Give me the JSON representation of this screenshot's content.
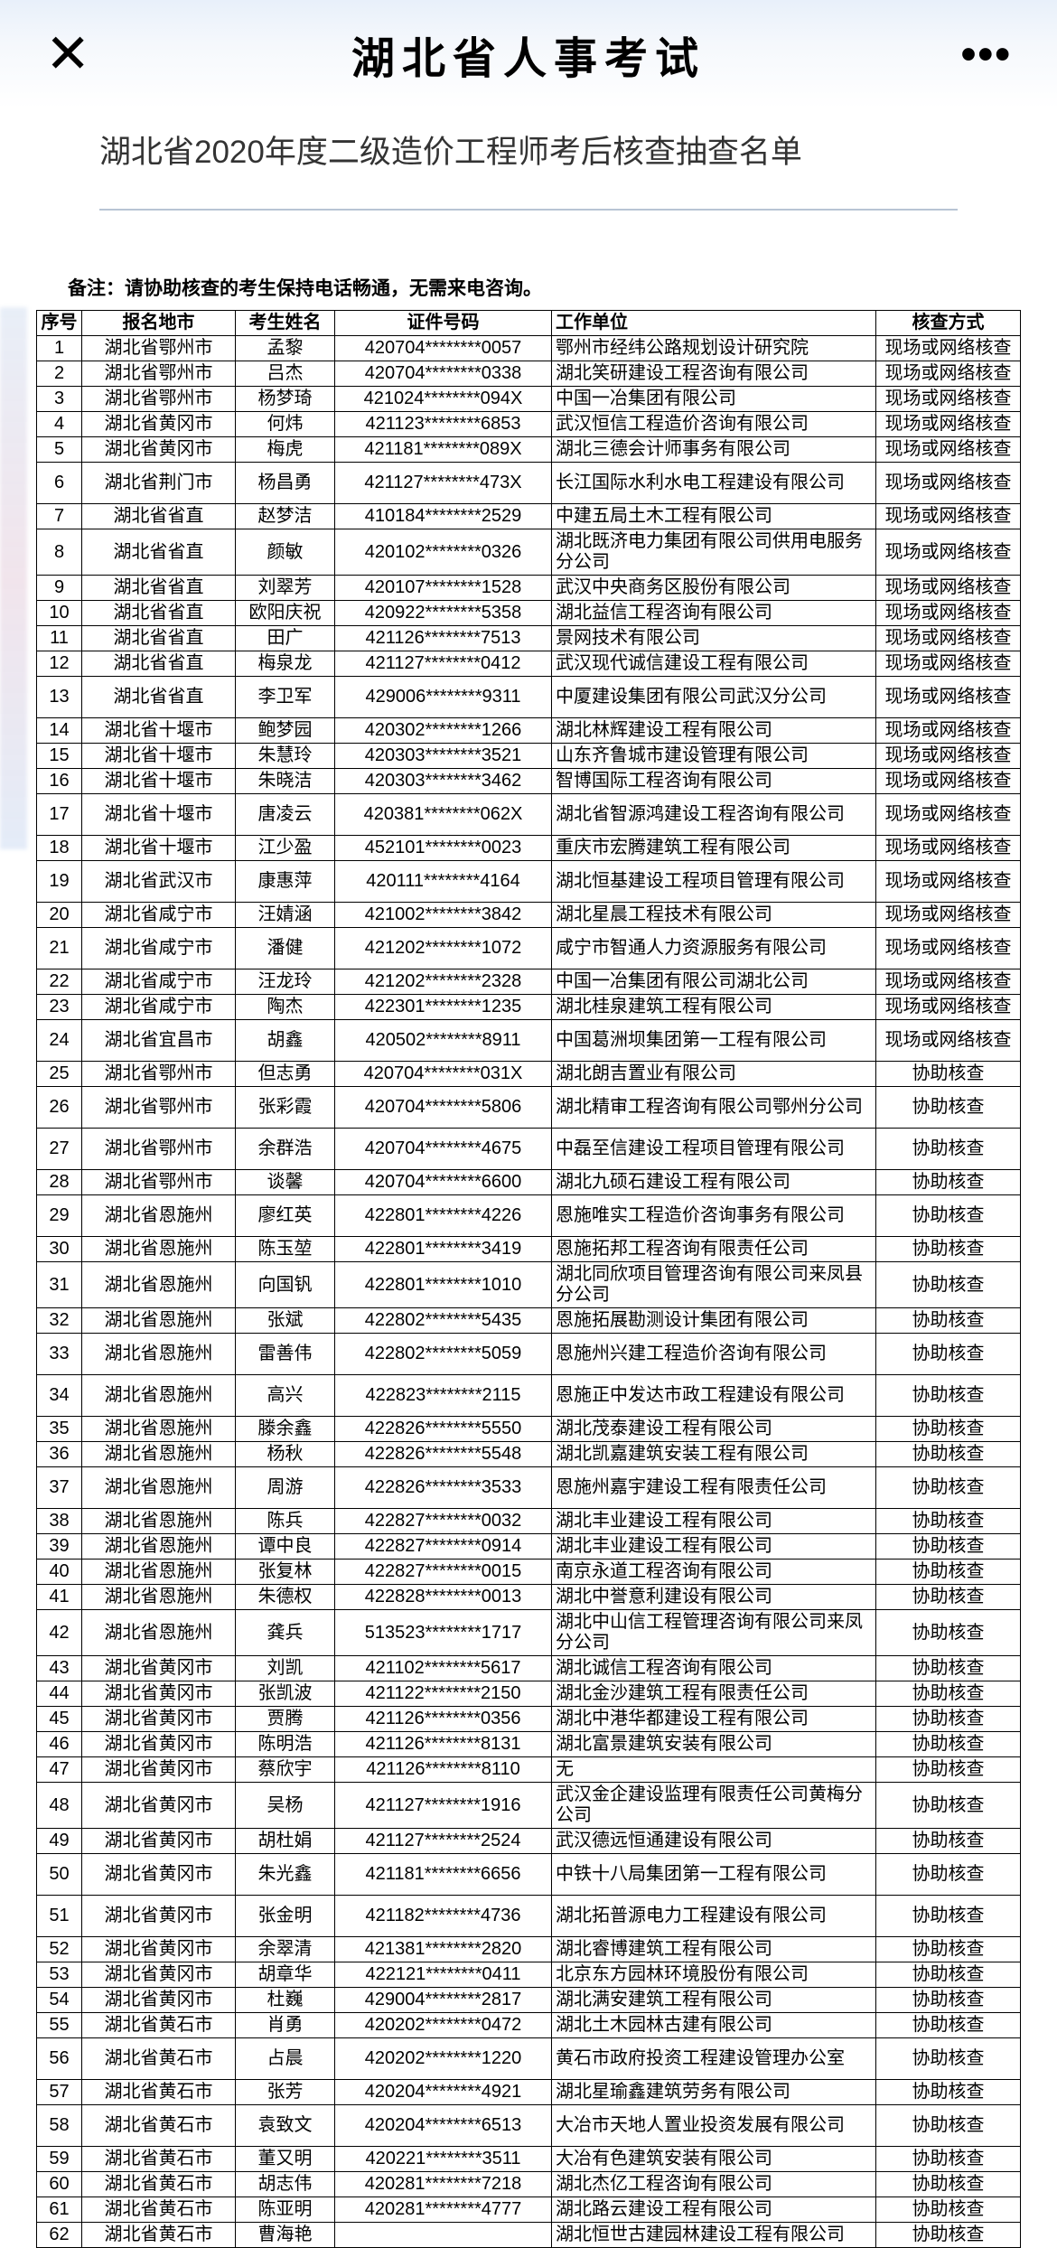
{
  "header": {
    "title": "湖北省人事考试"
  },
  "doc": {
    "title": "湖北省2020年度二级造价工程师考后核查抽查名单",
    "note": "备注：请协助核查的考生保持电话畅通，无需来电咨询。"
  },
  "table": {
    "columns": [
      "序号",
      "报名地市",
      "考生姓名",
      "证件号码",
      "工作单位",
      "核查方式"
    ],
    "rows": [
      [
        "1",
        "湖北省鄂州市",
        "孟黎",
        "420704********0057",
        "鄂州市经纬公路规划设计研究院",
        "现场或网络核查"
      ],
      [
        "2",
        "湖北省鄂州市",
        "吕杰",
        "420704********0338",
        "湖北笑研建设工程咨询有限公司",
        "现场或网络核查"
      ],
      [
        "3",
        "湖北省鄂州市",
        "杨梦琦",
        "421024********094X",
        "中国一冶集团有限公司",
        "现场或网络核查"
      ],
      [
        "4",
        "湖北省黄冈市",
        "何炜",
        "421123********6853",
        "武汉恒信工程造价咨询有限公司",
        "现场或网络核查"
      ],
      [
        "5",
        "湖北省黄冈市",
        "梅虎",
        "421181********089X",
        "湖北三德会计师事务有限公司",
        "现场或网络核查"
      ],
      [
        "6",
        "湖北省荆门市",
        "杨昌勇",
        "421127********473X",
        "长江国际水利水电工程建设有限公司",
        "现场或网络核查"
      ],
      [
        "7",
        "湖北省省直",
        "赵梦洁",
        "410184********2529",
        "中建五局土木工程有限公司",
        "现场或网络核查"
      ],
      [
        "8",
        "湖北省省直",
        "颜敏",
        "420102********0326",
        "湖北既济电力集团有限公司供用电服务分公司",
        "现场或网络核查"
      ],
      [
        "9",
        "湖北省省直",
        "刘翠芳",
        "420107********1528",
        "武汉中央商务区股份有限公司",
        "现场或网络核查"
      ],
      [
        "10",
        "湖北省省直",
        "欧阳庆祝",
        "420922********5358",
        "湖北益信工程咨询有限公司",
        "现场或网络核查"
      ],
      [
        "11",
        "湖北省省直",
        "田广",
        "421126********7513",
        "景网技术有限公司",
        "现场或网络核查"
      ],
      [
        "12",
        "湖北省省直",
        "梅泉龙",
        "421127********0412",
        "武汉现代诚信建设工程有限公司",
        "现场或网络核查"
      ],
      [
        "13",
        "湖北省省直",
        "李卫军",
        "429006********9311",
        "中厦建设集团有限公司武汉分公司",
        "现场或网络核查"
      ],
      [
        "14",
        "湖北省十堰市",
        "鲍梦园",
        "420302********1266",
        "湖北林辉建设工程有限公司",
        "现场或网络核查"
      ],
      [
        "15",
        "湖北省十堰市",
        "朱慧玲",
        "420303********3521",
        "山东齐鲁城市建设管理有限公司",
        "现场或网络核查"
      ],
      [
        "16",
        "湖北省十堰市",
        "朱晓洁",
        "420303********3462",
        "智博国际工程咨询有限公司",
        "现场或网络核查"
      ],
      [
        "17",
        "湖北省十堰市",
        "唐凌云",
        "420381********062X",
        "湖北省智源鸿建设工程咨询有限公司",
        "现场或网络核查"
      ],
      [
        "18",
        "湖北省十堰市",
        "江少盈",
        "452101********0023",
        "重庆市宏腾建筑工程有限公司",
        "现场或网络核查"
      ],
      [
        "19",
        "湖北省武汉市",
        "康惠萍",
        "420111********4164",
        "湖北恒基建设工程项目管理有限公司",
        "现场或网络核查"
      ],
      [
        "20",
        "湖北省咸宁市",
        "汪婧涵",
        "421002********3842",
        "湖北星晨工程技术有限公司",
        "现场或网络核查"
      ],
      [
        "21",
        "湖北省咸宁市",
        "潘健",
        "421202********1072",
        "咸宁市智通人力资源服务有限公司",
        "现场或网络核查"
      ],
      [
        "22",
        "湖北省咸宁市",
        "汪龙玲",
        "421202********2328",
        "中国一冶集团有限公司湖北公司",
        "现场或网络核查"
      ],
      [
        "23",
        "湖北省咸宁市",
        "陶杰",
        "422301********1235",
        "湖北桂泉建筑工程有限公司",
        "现场或网络核查"
      ],
      [
        "24",
        "湖北省宜昌市",
        "胡鑫",
        "420502********8911",
        "中国葛洲坝集团第一工程有限公司",
        "现场或网络核查"
      ],
      [
        "25",
        "湖北省鄂州市",
        "但志勇",
        "420704********031X",
        "湖北朗吉置业有限公司",
        "协助核查"
      ],
      [
        "26",
        "湖北省鄂州市",
        "张彩霞",
        "420704********5806",
        "湖北精审工程咨询有限公司鄂州分公司",
        "协助核查"
      ],
      [
        "27",
        "湖北省鄂州市",
        "余群浩",
        "420704********4675",
        "中磊至信建设工程项目管理有限公司",
        "协助核查"
      ],
      [
        "28",
        "湖北省鄂州市",
        "谈馨",
        "420704********6600",
        "湖北九硕石建设工程有限公司",
        "协助核查"
      ],
      [
        "29",
        "湖北省恩施州",
        "廖红英",
        "422801********4226",
        "恩施唯实工程造价咨询事务有限公司",
        "协助核查"
      ],
      [
        "30",
        "湖北省恩施州",
        "陈玉堃",
        "422801********3419",
        "恩施拓邦工程咨询有限责任公司",
        "协助核查"
      ],
      [
        "31",
        "湖北省恩施州",
        "向国钒",
        "422801********1010",
        "湖北同欣项目管理咨询有限公司来凤县分公司",
        "协助核查"
      ],
      [
        "32",
        "湖北省恩施州",
        "张斌",
        "422802********5435",
        "恩施拓展勘测设计集团有限公司",
        "协助核查"
      ],
      [
        "33",
        "湖北省恩施州",
        "雷善伟",
        "422802********5059",
        "恩施州兴建工程造价咨询有限公司",
        "协助核查"
      ],
      [
        "34",
        "湖北省恩施州",
        "高兴",
        "422823********2115",
        "恩施正中发达市政工程建设有限公司",
        "协助核查"
      ],
      [
        "35",
        "湖北省恩施州",
        "滕余鑫",
        "422826********5550",
        "湖北茂泰建设工程有限公司",
        "协助核查"
      ],
      [
        "36",
        "湖北省恩施州",
        "杨秋",
        "422826********5548",
        "湖北凯嘉建筑安装工程有限公司",
        "协助核查"
      ],
      [
        "37",
        "湖北省恩施州",
        "周游",
        "422826********3533",
        "恩施州嘉宇建设工程有限责任公司",
        "协助核查"
      ],
      [
        "38",
        "湖北省恩施州",
        "陈兵",
        "422827********0032",
        "湖北丰业建设工程有限公司",
        "协助核查"
      ],
      [
        "39",
        "湖北省恩施州",
        "谭中良",
        "422827********0914",
        "湖北丰业建设工程有限公司",
        "协助核查"
      ],
      [
        "40",
        "湖北省恩施州",
        "张复林",
        "422827********0015",
        "南京永道工程咨询有限公司",
        "协助核查"
      ],
      [
        "41",
        "湖北省恩施州",
        "朱德权",
        "422828********0013",
        "湖北中誉意利建设有限公司",
        "协助核查"
      ],
      [
        "42",
        "湖北省恩施州",
        "龚兵",
        "513523********1717",
        "湖北中山信工程管理咨询有限公司来凤分公司",
        "协助核查"
      ],
      [
        "43",
        "湖北省黄冈市",
        "刘凯",
        "421102********5617",
        "湖北诚信工程咨询有限公司",
        "协助核查"
      ],
      [
        "44",
        "湖北省黄冈市",
        "张凯波",
        "421122********2150",
        "湖北金沙建筑工程有限责任公司",
        "协助核查"
      ],
      [
        "45",
        "湖北省黄冈市",
        "贾腾",
        "421126********0356",
        "湖北中港华都建设工程有限公司",
        "协助核查"
      ],
      [
        "46",
        "湖北省黄冈市",
        "陈明浩",
        "421126********8131",
        "湖北富景建筑安装有限公司",
        "协助核查"
      ],
      [
        "47",
        "湖北省黄冈市",
        "蔡欣宇",
        "421126********8110",
        "无",
        "协助核查"
      ],
      [
        "48",
        "湖北省黄冈市",
        "吴杨",
        "421127********1916",
        "武汉金企建设监理有限责任公司黄梅分公司",
        "协助核查"
      ],
      [
        "49",
        "湖北省黄冈市",
        "胡杜娟",
        "421127********2524",
        "武汉德远恒通建设有限公司",
        "协助核查"
      ],
      [
        "50",
        "湖北省黄冈市",
        "朱光鑫",
        "421181********6656",
        "中铁十八局集团第一工程有限公司",
        "协助核查"
      ],
      [
        "51",
        "湖北省黄冈市",
        "张金明",
        "421182********4736",
        "湖北拓普源电力工程建设有限公司",
        "协助核查"
      ],
      [
        "52",
        "湖北省黄冈市",
        "余翠清",
        "421381********2820",
        "湖北睿博建筑工程有限公司",
        "协助核查"
      ],
      [
        "53",
        "湖北省黄冈市",
        "胡章华",
        "422121********0411",
        "北京东方园林环境股份有限公司",
        "协助核查"
      ],
      [
        "54",
        "湖北省黄冈市",
        "杜巍",
        "429004********2817",
        "湖北满安建筑工程有限公司",
        "协助核查"
      ],
      [
        "55",
        "湖北省黄石市",
        "肖勇",
        "420202********0472",
        "湖北土木园林古建有限公司",
        "协助核查"
      ],
      [
        "56",
        "湖北省黄石市",
        "占晨",
        "420202********1220",
        "黄石市政府投资工程建设管理办公室",
        "协助核查"
      ],
      [
        "57",
        "湖北省黄石市",
        "张芳",
        "420204********4921",
        "湖北星瑜鑫建筑劳务有限公司",
        "协助核查"
      ],
      [
        "58",
        "湖北省黄石市",
        "袁致文",
        "420204********6513",
        "大冶市天地人置业投资发展有限公司",
        "协助核查"
      ],
      [
        "59",
        "湖北省黄石市",
        "董又明",
        "420221********3511",
        "大冶有色建筑安装有限公司",
        "协助核查"
      ],
      [
        "60",
        "湖北省黄石市",
        "胡志伟",
        "420281********7218",
        "湖北杰亿工程咨询有限公司",
        "协助核查"
      ],
      [
        "61",
        "湖北省黄石市",
        "陈亚明",
        "420281********4777",
        "湖北路云建设工程有限公司",
        "协助核查"
      ],
      [
        "62",
        "湖北省黄石市",
        "曹海艳",
        "",
        "湖北恒世古建园林建设工程有限公司",
        "协助核查"
      ]
    ],
    "twoLineRows": [
      6,
      8,
      13,
      17,
      19,
      21,
      24,
      26,
      27,
      29,
      31,
      33,
      34,
      37,
      42,
      48,
      50,
      51,
      56,
      58
    ]
  }
}
